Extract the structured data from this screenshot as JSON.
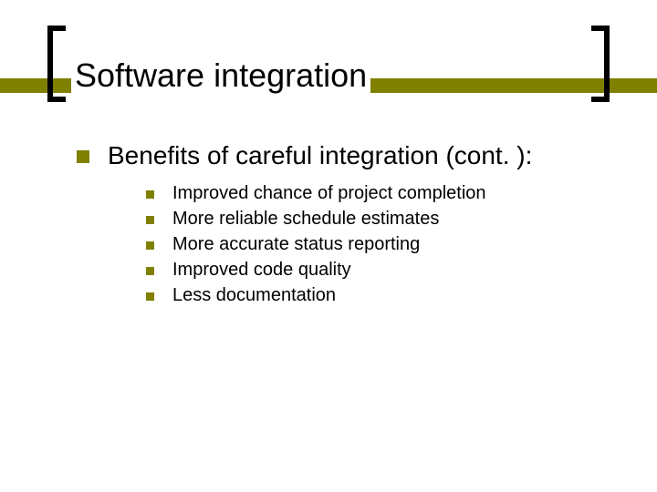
{
  "slide": {
    "title": "Software integration",
    "title_fontsize": 36,
    "title_color": "#000000",
    "bracket_color": "#000000",
    "band_color": "#808000",
    "background_color": "#ffffff",
    "bullet_color": "#808000",
    "heading": {
      "text": "Benefits of careful integration (cont. ):",
      "fontsize": 28
    },
    "items": [
      "Improved chance of project completion",
      "More reliable schedule estimates",
      "More accurate status reporting",
      "Improved code quality",
      "Less documentation"
    ],
    "item_fontsize": 20
  }
}
